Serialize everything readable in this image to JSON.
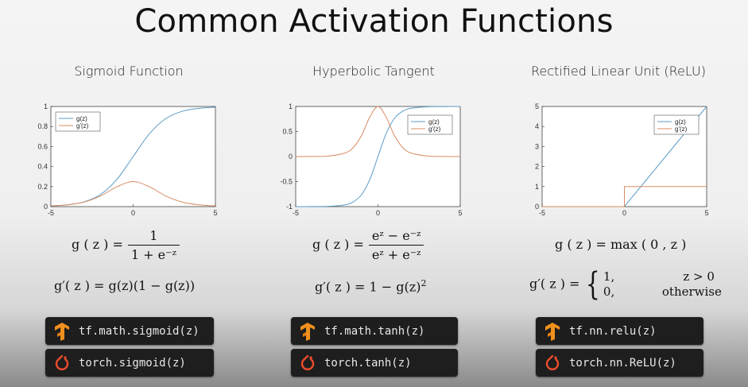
{
  "title": "Common Activation Functions",
  "colors": {
    "blue": "#5b9bc7",
    "orange": "#d98b62",
    "code_bg": "#1e1e1e",
    "tf_orange": "#f0901e",
    "torch_orange": "#ee4c2c"
  },
  "panels": [
    {
      "title": "Sigmoid Function",
      "formula_g": {
        "lhs": "g ( z ) =",
        "num": "1",
        "den": "1 + e⁻ᶻ"
      },
      "formula_gp": "g′( z ) = g(z)(1 − g(z))",
      "code_tf": {
        "icon": "tensorflow-logo-icon",
        "text": "tf.math.sigmoid(z)"
      },
      "code_torch": {
        "icon": "pytorch-logo-icon",
        "text": "torch.sigmoid(z)"
      }
    },
    {
      "title": "Hyperbolic Tangent",
      "formula_g": {
        "lhs": "g ( z ) =",
        "num": "eᶻ − e⁻ᶻ",
        "den": "eᶻ + e⁻ᶻ"
      },
      "formula_gp": "g′( z ) = 1 − g(z)",
      "formula_gp_sup": "2",
      "code_tf": {
        "icon": "tensorflow-logo-icon",
        "text": "tf.math.tanh(z)"
      },
      "code_torch": {
        "icon": "pytorch-logo-icon",
        "text": "torch.tanh(z)"
      }
    },
    {
      "title": "Rectified Linear Unit (ReLU)",
      "formula_g": "g ( z ) = max ( 0 , z )",
      "formula_gp_lhs": "g′( z ) =",
      "formula_gp_cases": [
        {
          "value": "1,",
          "condition": "z > 0"
        },
        {
          "value": "0,",
          "condition": "otherwise"
        }
      ],
      "code_tf": {
        "icon": "tensorflow-logo-icon",
        "text": "tf.nn.relu(z)"
      },
      "code_torch": {
        "icon": "pytorch-logo-icon",
        "text": "torch.nn.ReLU(z)"
      }
    }
  ],
  "chart_data": [
    {
      "type": "line",
      "title": "Sigmoid Function",
      "xlim": [
        -5,
        5
      ],
      "ylim": [
        0,
        1
      ],
      "xticks": [
        "-5",
        "0",
        "5"
      ],
      "yticks": [
        "0",
        "0.2",
        "0.4",
        "0.6",
        "0.8",
        "1"
      ],
      "ytick_values": [
        0,
        0.2,
        0.4,
        0.6,
        0.8,
        1
      ],
      "legend": [
        "g(z)",
        "g'(z)"
      ],
      "legend_position": "top-left",
      "series": [
        {
          "name": "g(z)",
          "x": [
            -5,
            -4,
            -3,
            -2,
            -1,
            0,
            1,
            2,
            3,
            4,
            5
          ],
          "y": [
            0.007,
            0.018,
            0.047,
            0.119,
            0.269,
            0.5,
            0.731,
            0.881,
            0.953,
            0.982,
            0.993
          ]
        },
        {
          "name": "g'(z)",
          "x": [
            -5,
            -4,
            -3,
            -2,
            -1,
            0,
            1,
            2,
            3,
            4,
            5
          ],
          "y": [
            0.007,
            0.018,
            0.045,
            0.105,
            0.197,
            0.25,
            0.197,
            0.105,
            0.045,
            0.018,
            0.007
          ]
        }
      ]
    },
    {
      "type": "line",
      "title": "Hyperbolic Tangent",
      "xlim": [
        -5,
        5
      ],
      "ylim": [
        -1,
        1
      ],
      "xticks": [
        "-5",
        "0",
        "5"
      ],
      "yticks": [
        "-1",
        "-0.5",
        "0",
        "0.5",
        "1"
      ],
      "ytick_values": [
        -1,
        -0.5,
        0,
        0.5,
        1
      ],
      "legend": [
        "g(z)",
        "g'(z)"
      ],
      "legend_position": "top-right",
      "series": [
        {
          "name": "g(z)",
          "x": [
            -5,
            -4,
            -3,
            -2,
            -1.5,
            -1,
            -0.5,
            0,
            0.5,
            1,
            1.5,
            2,
            3,
            4,
            5
          ],
          "y": [
            -1,
            -0.999,
            -0.995,
            -0.964,
            -0.905,
            -0.762,
            -0.462,
            0,
            0.462,
            0.762,
            0.905,
            0.964,
            0.995,
            0.999,
            1
          ]
        },
        {
          "name": "g'(z)",
          "x": [
            -5,
            -4,
            -3,
            -2,
            -1.5,
            -1,
            -0.5,
            0,
            0.5,
            1,
            1.5,
            2,
            3,
            4,
            5
          ],
          "y": [
            0,
            0.001,
            0.01,
            0.071,
            0.181,
            0.42,
            0.786,
            1,
            0.786,
            0.42,
            0.181,
            0.071,
            0.01,
            0.001,
            0
          ]
        }
      ]
    },
    {
      "type": "line",
      "title": "Rectified Linear Unit (ReLU)",
      "xlim": [
        -5,
        5
      ],
      "ylim": [
        0,
        5
      ],
      "xticks": [
        "-5",
        "0",
        "5"
      ],
      "yticks": [
        "0",
        "1",
        "2",
        "3",
        "4",
        "5"
      ],
      "ytick_values": [
        0,
        1,
        2,
        3,
        4,
        5
      ],
      "legend": [
        "g(z)",
        "g'(z)"
      ],
      "legend_position": "top-right",
      "series": [
        {
          "name": "g(z)",
          "x": [
            -5,
            0,
            5
          ],
          "y": [
            0,
            0,
            5
          ]
        },
        {
          "name": "g'(z)",
          "x": [
            -5,
            0,
            0,
            5
          ],
          "y": [
            0,
            0,
            1,
            1
          ]
        }
      ]
    }
  ]
}
